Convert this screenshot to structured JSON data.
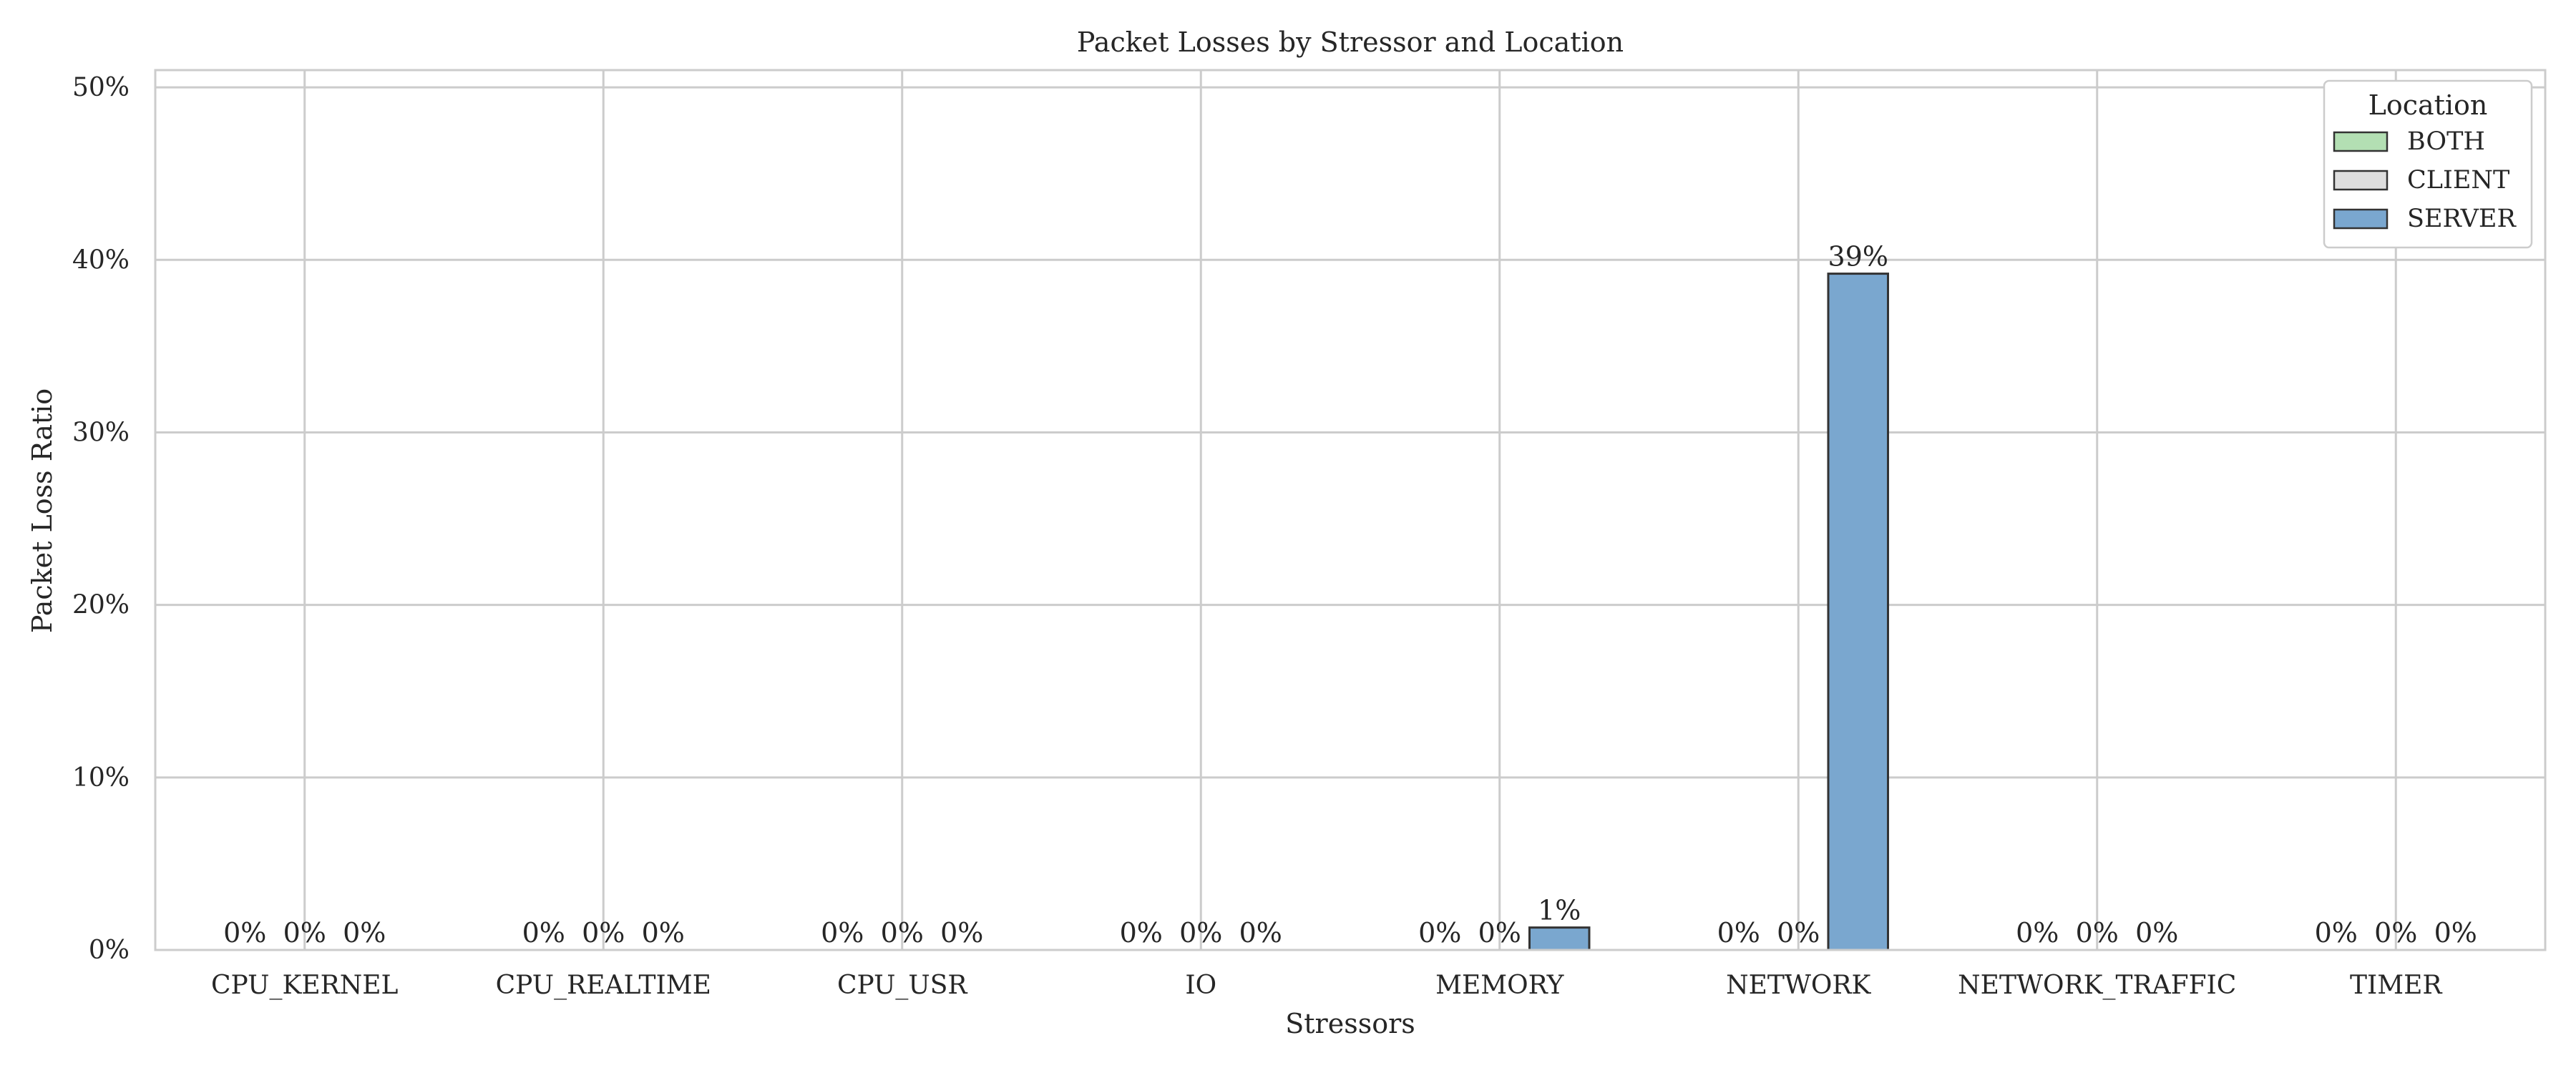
{
  "chart_data": {
    "type": "bar",
    "title": "Packet Losses by Stressor and Location",
    "xlabel": "Stressors",
    "ylabel": "Packet Loss Ratio",
    "ylim": [
      0,
      51
    ],
    "yticks": [
      0,
      10,
      20,
      30,
      40,
      50
    ],
    "ytick_labels": [
      "0%",
      "10%",
      "20%",
      "30%",
      "40%",
      "50%"
    ],
    "grid": true,
    "categories": [
      "CPU_KERNEL",
      "CPU_REALTIME",
      "CPU_USR",
      "IO",
      "MEMORY",
      "NETWORK",
      "NETWORK_TRAFFIC",
      "TIMER"
    ],
    "series": [
      {
        "name": "BOTH",
        "color": "#b3dfb3",
        "values": [
          0,
          0,
          0,
          0,
          0,
          0,
          0,
          0
        ],
        "labels": [
          "0%",
          "0%",
          "0%",
          "0%",
          "0%",
          "0%",
          "0%",
          "0%"
        ]
      },
      {
        "name": "CLIENT",
        "color": "#dedede",
        "values": [
          0,
          0,
          0,
          0,
          0,
          0,
          0,
          0
        ],
        "labels": [
          "0%",
          "0%",
          "0%",
          "0%",
          "0%",
          "0%",
          "0%",
          "0%"
        ]
      },
      {
        "name": "SERVER",
        "color": "#7aa7cf",
        "values": [
          0,
          0,
          0,
          0,
          1.3,
          39.2,
          0,
          0
        ],
        "labels": [
          "0%",
          "0%",
          "0%",
          "0%",
          "1%",
          "39%",
          "0%",
          "0%"
        ]
      }
    ],
    "legend": {
      "title": "Location",
      "placement": "top-right"
    }
  }
}
